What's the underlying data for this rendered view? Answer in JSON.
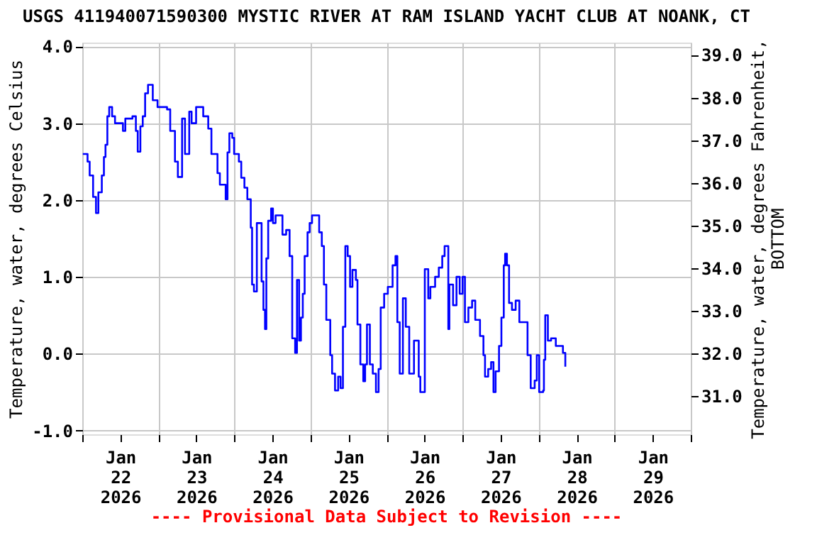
{
  "chart_data": {
    "type": "step",
    "title": "USGS 411940071590300 MYSTIC RIVER AT RAM ISLAND YACHT CLUB AT NOANK, CT",
    "ylabel": "Temperature, water, degrees Celsius",
    "y2label": "Temperature, water, degrees Fahrenheit, BOTTOM",
    "annotations": [
      "---- Provisional Data Subject to Revision ----"
    ],
    "xlim": [
      "2026-01-22T00:00",
      "2026-01-30T00:00"
    ],
    "xticks": [
      {
        "value": "2026-01-22T00:00",
        "label": null
      },
      {
        "value": "2026-01-22T12:00",
        "label": "Jan 22 2026"
      },
      {
        "value": "2026-01-23T00:00",
        "label": null
      },
      {
        "value": "2026-01-23T12:00",
        "label": "Jan 23 2026"
      },
      {
        "value": "2026-01-24T00:00",
        "label": null
      },
      {
        "value": "2026-01-24T12:00",
        "label": "Jan 24 2026"
      },
      {
        "value": "2026-01-25T00:00",
        "label": null
      },
      {
        "value": "2026-01-25T12:00",
        "label": "Jan 25 2026"
      },
      {
        "value": "2026-01-26T00:00",
        "label": null
      },
      {
        "value": "2026-01-26T12:00",
        "label": "Jan 26 2026"
      },
      {
        "value": "2026-01-27T00:00",
        "label": null
      },
      {
        "value": "2026-01-27T12:00",
        "label": "Jan 27 2026"
      },
      {
        "value": "2026-01-28T00:00",
        "label": null
      },
      {
        "value": "2026-01-28T12:00",
        "label": "Jan 28 2026"
      },
      {
        "value": "2026-01-29T00:00",
        "label": null
      },
      {
        "value": "2026-01-29T12:00",
        "label": "Jan 29 2026"
      },
      {
        "value": "2026-01-30T00:00",
        "label": null
      }
    ],
    "ylim": [
      -1.05,
      4.05
    ],
    "yticks": [
      {
        "value": -1,
        "label": "-1.0"
      },
      {
        "value": 0,
        "label": "0.0"
      },
      {
        "value": 1,
        "label": "1.0"
      },
      {
        "value": 2,
        "label": "2.0"
      },
      {
        "value": 3,
        "label": "3.0"
      },
      {
        "value": 4,
        "label": "4.0"
      }
    ],
    "y2lim": [
      30.11,
      39.29
    ],
    "y2ticks": [
      {
        "value": 31,
        "label": "31.0"
      },
      {
        "value": 32,
        "label": "32.0"
      },
      {
        "value": 33,
        "label": "33.0"
      },
      {
        "value": 34,
        "label": "34.0"
      },
      {
        "value": 35,
        "label": "35.0"
      },
      {
        "value": 36,
        "label": "36.0"
      },
      {
        "value": 37,
        "label": "37.0"
      },
      {
        "value": 38,
        "label": "38.0"
      },
      {
        "value": 39,
        "label": "39.0"
      }
    ],
    "grid": true,
    "marker": "none",
    "line_style": "solid",
    "series": [
      {
        "color": "#0000ff",
        "x": [
          "2026-01-22T00:10",
          "2026-01-22T01:40",
          "2026-01-22T02:20",
          "2026-01-22T03:25",
          "2026-01-22T04:20",
          "2026-01-22T05:05",
          "2026-01-22T06:10",
          "2026-01-22T06:50",
          "2026-01-22T07:20",
          "2026-01-22T07:55",
          "2026-01-22T08:30",
          "2026-01-22T09:25",
          "2026-01-22T10:20",
          "2026-01-22T12:50",
          "2026-01-22T13:35",
          "2026-01-22T15:50",
          "2026-01-22T16:55",
          "2026-01-22T17:30",
          "2026-01-22T18:20",
          "2026-01-22T19:05",
          "2026-01-22T19:50",
          "2026-01-22T20:45",
          "2026-01-22T21:50",
          "2026-01-22T22:15",
          "2026-01-22T23:45",
          "2026-01-23T02:45",
          "2026-01-23T03:45",
          "2026-01-23T05:15",
          "2026-01-23T06:10",
          "2026-01-23T07:30",
          "2026-01-23T08:25",
          "2026-01-23T09:45",
          "2026-01-23T10:30",
          "2026-01-23T11:55",
          "2026-01-23T14:10",
          "2026-01-23T15:45",
          "2026-01-23T16:45",
          "2026-01-23T18:40",
          "2026-01-23T19:25",
          "2026-01-23T21:15",
          "2026-01-23T21:50",
          "2026-01-23T22:25",
          "2026-01-23T23:20",
          "2026-01-23T23:55",
          "2026-01-24T01:25",
          "2026-01-24T02:10",
          "2026-01-24T03:10",
          "2026-01-24T04:05",
          "2026-01-24T04:40",
          "2026-01-24T05:10",
          "2026-01-24T05:35",
          "2026-01-24T06:10",
          "2026-01-24T07:05",
          "2026-01-24T08:05",
          "2026-01-24T08:35",
          "2026-01-24T09:10",
          "2026-01-24T09:40",
          "2026-01-24T10:05",
          "2026-01-24T10:40",
          "2026-01-24T11:35",
          "2026-01-24T12:10",
          "2026-01-24T13:00",
          "2026-01-24T14:05",
          "2026-01-24T15:10",
          "2026-01-24T16:20",
          "2026-01-24T17:25",
          "2026-01-24T18:15",
          "2026-01-24T19:10",
          "2026-01-24T19:45",
          "2026-01-24T20:25",
          "2026-01-24T21:00",
          "2026-01-24T21:35",
          "2026-01-24T22:10",
          "2026-01-24T23:05",
          "2026-01-24T23:45",
          "2026-01-25T00:30",
          "2026-01-25T02:20",
          "2026-01-25T02:45",
          "2026-01-25T03:35",
          "2026-01-25T04:15",
          "2026-01-25T05:00",
          "2026-01-25T06:15",
          "2026-01-25T06:50",
          "2026-01-25T07:45",
          "2026-01-25T08:45",
          "2026-01-25T09:30",
          "2026-01-25T10:15",
          "2026-01-25T11:00",
          "2026-01-25T11:45",
          "2026-01-25T12:30",
          "2026-01-25T13:15",
          "2026-01-25T14:20",
          "2026-01-25T14:50",
          "2026-01-25T15:45",
          "2026-01-25T16:40",
          "2026-01-25T17:15",
          "2026-01-25T17:50",
          "2026-01-25T18:45",
          "2026-01-25T19:40",
          "2026-01-25T20:40",
          "2026-01-25T21:30",
          "2026-01-25T22:10",
          "2026-01-25T23:15",
          "2026-01-26T00:25",
          "2026-01-26T01:55",
          "2026-01-26T02:50",
          "2026-01-26T03:25",
          "2026-01-26T04:10",
          "2026-01-26T05:10",
          "2026-01-26T06:05",
          "2026-01-26T07:10",
          "2026-01-26T08:40",
          "2026-01-26T10:10",
          "2026-01-26T10:40",
          "2026-01-26T11:40",
          "2026-01-26T12:05",
          "2026-01-26T13:10",
          "2026-01-26T13:50",
          "2026-01-26T15:20",
          "2026-01-26T16:30",
          "2026-01-26T17:35",
          "2026-01-26T18:20",
          "2026-01-26T19:05",
          "2026-01-26T19:30",
          "2026-01-26T19:50",
          "2026-01-26T21:00",
          "2026-01-26T22:05",
          "2026-01-26T23:05",
          "2026-01-27T00:00",
          "2026-01-27T00:45",
          "2026-01-27T01:50",
          "2026-01-27T03:00",
          "2026-01-27T04:00",
          "2026-01-27T05:30",
          "2026-01-27T06:35",
          "2026-01-27T07:05",
          "2026-01-27T08:05",
          "2026-01-27T09:00",
          "2026-01-27T09:45",
          "2026-01-27T10:25",
          "2026-01-27T11:30",
          "2026-01-27T12:15",
          "2026-01-27T13:00",
          "2026-01-27T13:25",
          "2026-01-27T14:00",
          "2026-01-27T14:40",
          "2026-01-27T15:35",
          "2026-01-27T16:45",
          "2026-01-27T17:55",
          "2026-01-27T19:45",
          "2026-01-27T20:30",
          "2026-01-27T21:30",
          "2026-01-27T22:45",
          "2026-01-27T23:25",
          "2026-01-28T00:10",
          "2026-01-28T01:25",
          "2026-01-28T01:40",
          "2026-01-28T02:05",
          "2026-01-28T02:55",
          "2026-01-28T03:55",
          "2026-01-28T05:25",
          "2026-01-28T06:55",
          "2026-01-28T07:40",
          "2026-01-28T08:25"
        ],
        "values": [
          2.6,
          2.5,
          2.32,
          2.04,
          1.83,
          2.1,
          2.32,
          2.56,
          2.72,
          3.09,
          3.21,
          3.09,
          3.0,
          2.9,
          3.06,
          3.09,
          2.9,
          2.63,
          2.96,
          3.09,
          3.39,
          3.5,
          3.5,
          3.3,
          3.21,
          3.18,
          2.9,
          2.5,
          2.3,
          3.06,
          2.6,
          3.15,
          3.0,
          3.21,
          3.09,
          2.93,
          2.6,
          2.35,
          2.2,
          2.01,
          2.62,
          2.87,
          2.81,
          2.6,
          2.5,
          2.29,
          2.16,
          2.01,
          2.01,
          1.64,
          0.9,
          0.81,
          1.7,
          1.7,
          0.94,
          0.57,
          0.32,
          1.24,
          1.73,
          1.89,
          1.7,
          1.8,
          1.8,
          1.55,
          1.61,
          1.27,
          0.2,
          0.01,
          0.96,
          0.17,
          0.47,
          0.78,
          1.27,
          1.58,
          1.7,
          1.8,
          1.8,
          1.58,
          1.4,
          0.9,
          0.44,
          -0.02,
          -0.26,
          -0.48,
          -0.3,
          -0.45,
          0.35,
          1.4,
          1.27,
          0.87,
          1.09,
          0.96,
          0.38,
          -0.14,
          -0.36,
          -0.14,
          0.38,
          -0.14,
          -0.26,
          -0.5,
          -0.2,
          0.6,
          0.78,
          0.87,
          1.15,
          1.27,
          0.41,
          -0.26,
          0.72,
          0.35,
          -0.26,
          0.17,
          -0.3,
          -0.5,
          -0.5,
          1.1,
          0.72,
          0.87,
          1.0,
          1.12,
          1.27,
          1.4,
          1.4,
          0.32,
          0.9,
          0.63,
          1.0,
          0.78,
          1.0,
          0.41,
          0.6,
          0.69,
          0.44,
          0.23,
          -0.02,
          -0.3,
          -0.2,
          -0.11,
          -0.5,
          -0.23,
          0.1,
          0.47,
          1.15,
          1.3,
          1.15,
          0.66,
          0.57,
          0.69,
          0.41,
          0.41,
          -0.02,
          -0.45,
          -0.35,
          -0.02,
          -0.5,
          -0.48,
          -0.08,
          0.5,
          0.17,
          0.2,
          0.1,
          0.1,
          0.01,
          -0.17
        ]
      }
    ]
  }
}
